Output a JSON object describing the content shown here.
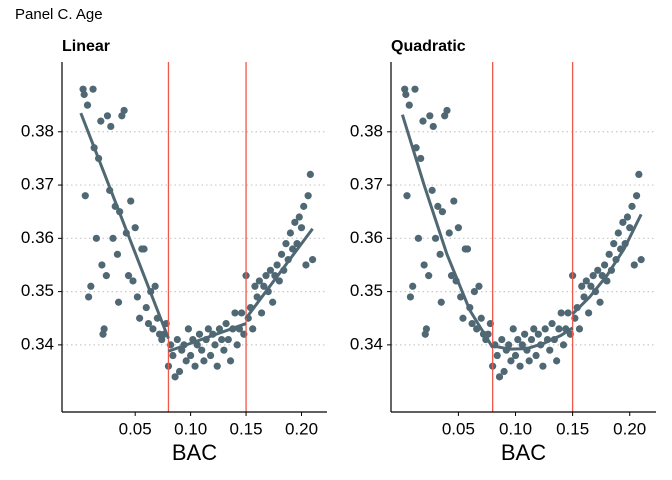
{
  "title": "Panel C. Age",
  "chart_data": [
    {
      "type": "scatter",
      "title": "Linear",
      "x_label": "BAC",
      "xlim": [
        -0.016,
        0.223
      ],
      "ylim": [
        0.3274,
        0.3931
      ],
      "xticks": [
        0.05,
        {
          "value": 0.1,
          "label": "0.10"
        },
        0.15,
        {
          "value": 0.2,
          "label": "0.20"
        }
      ],
      "yticks": [
        0.34,
        0.35,
        0.36,
        0.37,
        0.38
      ],
      "grid": true,
      "cutoffs": [
        0.08,
        0.15
      ],
      "cutoff_color": "#f0584a",
      "points": {
        "color": "#4f6873",
        "x": [
          0.003,
          0.004,
          0.005,
          0.007,
          0.008,
          0.01,
          0.012,
          0.013,
          0.015,
          0.017,
          0.019,
          0.02,
          0.021,
          0.022,
          0.024,
          0.025,
          0.027,
          0.028,
          0.03,
          0.032,
          0.034,
          0.035,
          0.036,
          0.038,
          0.04,
          0.042,
          0.044,
          0.046,
          0.048,
          0.05,
          0.052,
          0.054,
          0.056,
          0.058,
          0.06,
          0.062,
          0.064,
          0.066,
          0.068,
          0.07,
          0.072,
          0.074,
          0.076,
          0.078,
          0.08,
          0.082,
          0.084,
          0.086,
          0.088,
          0.09,
          0.092,
          0.094,
          0.096,
          0.098,
          0.1,
          0.102,
          0.104,
          0.106,
          0.108,
          0.11,
          0.112,
          0.114,
          0.116,
          0.118,
          0.12,
          0.122,
          0.124,
          0.126,
          0.128,
          0.13,
          0.132,
          0.134,
          0.136,
          0.138,
          0.14,
          0.142,
          0.144,
          0.146,
          0.148,
          0.15,
          0.152,
          0.154,
          0.156,
          0.158,
          0.16,
          0.162,
          0.164,
          0.166,
          0.168,
          0.17,
          0.172,
          0.174,
          0.176,
          0.178,
          0.18,
          0.182,
          0.184,
          0.186,
          0.188,
          0.19,
          0.192,
          0.194,
          0.196,
          0.198,
          0.2,
          0.202,
          0.204,
          0.206,
          0.208,
          0.21
        ],
        "y": [
          0.388,
          0.387,
          0.368,
          0.385,
          0.349,
          0.351,
          0.388,
          0.377,
          0.36,
          0.375,
          0.382,
          0.355,
          0.342,
          0.343,
          0.353,
          0.383,
          0.369,
          0.381,
          0.36,
          0.366,
          0.357,
          0.348,
          0.365,
          0.383,
          0.384,
          0.361,
          0.353,
          0.367,
          0.352,
          0.362,
          0.349,
          0.345,
          0.358,
          0.358,
          0.347,
          0.344,
          0.35,
          0.343,
          0.351,
          0.345,
          0.342,
          0.341,
          0.342,
          0.344,
          0.336,
          0.34,
          0.338,
          0.334,
          0.341,
          0.335,
          0.339,
          0.34,
          0.337,
          0.343,
          0.338,
          0.341,
          0.336,
          0.34,
          0.342,
          0.339,
          0.337,
          0.341,
          0.343,
          0.338,
          0.342,
          0.34,
          0.336,
          0.343,
          0.341,
          0.339,
          0.344,
          0.341,
          0.337,
          0.343,
          0.346,
          0.34,
          0.343,
          0.346,
          0.342,
          0.353,
          0.345,
          0.347,
          0.343,
          0.351,
          0.349,
          0.352,
          0.346,
          0.351,
          0.353,
          0.35,
          0.354,
          0.348,
          0.353,
          0.355,
          0.352,
          0.357,
          0.354,
          0.359,
          0.356,
          0.361,
          0.358,
          0.363,
          0.359,
          0.364,
          0.362,
          0.366,
          0.355,
          0.368,
          0.372,
          0.356
        ]
      },
      "fits": [
        {
          "color": "#4f6873",
          "x": [
            0.001,
            0.08
          ],
          "y": [
            0.3835,
            0.3412
          ]
        },
        {
          "color": "#4f6873",
          "x": [
            0.08,
            0.15
          ],
          "y": [
            0.3388,
            0.344
          ]
        },
        {
          "color": "#4f6873",
          "x": [
            0.15,
            0.21
          ],
          "y": [
            0.345,
            0.3618
          ]
        }
      ]
    },
    {
      "type": "scatter",
      "title": "Quadratic",
      "x_label": "BAC",
      "xlim": [
        -0.009,
        0.223
      ],
      "ylim": [
        0.3274,
        0.3931
      ],
      "xticks": [
        0.05,
        {
          "value": 0.1,
          "label": "0.10"
        },
        0.15,
        {
          "value": 0.2,
          "label": "0.20"
        }
      ],
      "yticks": [
        0.34,
        0.35,
        0.36,
        0.37,
        0.38
      ],
      "grid": true,
      "cutoffs": [
        0.08,
        0.15
      ],
      "cutoff_color": "#f0584a",
      "points": {
        "color": "#4f6873",
        "x": [
          0.003,
          0.004,
          0.005,
          0.007,
          0.008,
          0.01,
          0.012,
          0.013,
          0.015,
          0.017,
          0.019,
          0.02,
          0.021,
          0.022,
          0.024,
          0.025,
          0.027,
          0.028,
          0.03,
          0.032,
          0.034,
          0.035,
          0.036,
          0.038,
          0.04,
          0.042,
          0.044,
          0.046,
          0.048,
          0.05,
          0.052,
          0.054,
          0.056,
          0.058,
          0.06,
          0.062,
          0.064,
          0.066,
          0.068,
          0.07,
          0.072,
          0.074,
          0.076,
          0.078,
          0.08,
          0.082,
          0.084,
          0.086,
          0.088,
          0.09,
          0.092,
          0.094,
          0.096,
          0.098,
          0.1,
          0.102,
          0.104,
          0.106,
          0.108,
          0.11,
          0.112,
          0.114,
          0.116,
          0.118,
          0.12,
          0.122,
          0.124,
          0.126,
          0.128,
          0.13,
          0.132,
          0.134,
          0.136,
          0.138,
          0.14,
          0.142,
          0.144,
          0.146,
          0.148,
          0.15,
          0.152,
          0.154,
          0.156,
          0.158,
          0.16,
          0.162,
          0.164,
          0.166,
          0.168,
          0.17,
          0.172,
          0.174,
          0.176,
          0.178,
          0.18,
          0.182,
          0.184,
          0.186,
          0.188,
          0.19,
          0.192,
          0.194,
          0.196,
          0.198,
          0.2,
          0.202,
          0.204,
          0.206,
          0.208,
          0.21
        ],
        "y": [
          0.388,
          0.387,
          0.368,
          0.385,
          0.349,
          0.351,
          0.388,
          0.377,
          0.36,
          0.375,
          0.382,
          0.355,
          0.342,
          0.343,
          0.353,
          0.383,
          0.369,
          0.381,
          0.36,
          0.366,
          0.357,
          0.348,
          0.365,
          0.383,
          0.384,
          0.361,
          0.353,
          0.367,
          0.352,
          0.362,
          0.349,
          0.345,
          0.358,
          0.358,
          0.347,
          0.344,
          0.35,
          0.343,
          0.351,
          0.345,
          0.342,
          0.341,
          0.342,
          0.344,
          0.336,
          0.34,
          0.338,
          0.334,
          0.341,
          0.335,
          0.339,
          0.34,
          0.337,
          0.343,
          0.338,
          0.341,
          0.336,
          0.34,
          0.342,
          0.339,
          0.337,
          0.341,
          0.343,
          0.338,
          0.342,
          0.34,
          0.336,
          0.343,
          0.341,
          0.339,
          0.344,
          0.341,
          0.337,
          0.343,
          0.346,
          0.34,
          0.343,
          0.346,
          0.342,
          0.353,
          0.345,
          0.347,
          0.343,
          0.351,
          0.349,
          0.352,
          0.346,
          0.351,
          0.353,
          0.35,
          0.354,
          0.348,
          0.353,
          0.355,
          0.352,
          0.357,
          0.354,
          0.359,
          0.356,
          0.361,
          0.358,
          0.363,
          0.359,
          0.364,
          0.362,
          0.366,
          0.355,
          0.368,
          0.372,
          0.356
        ]
      },
      "fits": [
        {
          "color": "#4f6873",
          "x": [
            0.001,
            0.02,
            0.04,
            0.06,
            0.08
          ],
          "y": [
            0.3832,
            0.37,
            0.357,
            0.3465,
            0.3395
          ]
        },
        {
          "color": "#4f6873",
          "x": [
            0.08,
            0.095,
            0.11,
            0.125,
            0.14,
            0.15
          ],
          "y": [
            0.3398,
            0.3392,
            0.3393,
            0.3403,
            0.3418,
            0.3432
          ]
        },
        {
          "color": "#4f6873",
          "x": [
            0.15,
            0.165,
            0.18,
            0.195,
            0.21
          ],
          "y": [
            0.3458,
            0.349,
            0.353,
            0.358,
            0.3645
          ]
        }
      ]
    }
  ]
}
